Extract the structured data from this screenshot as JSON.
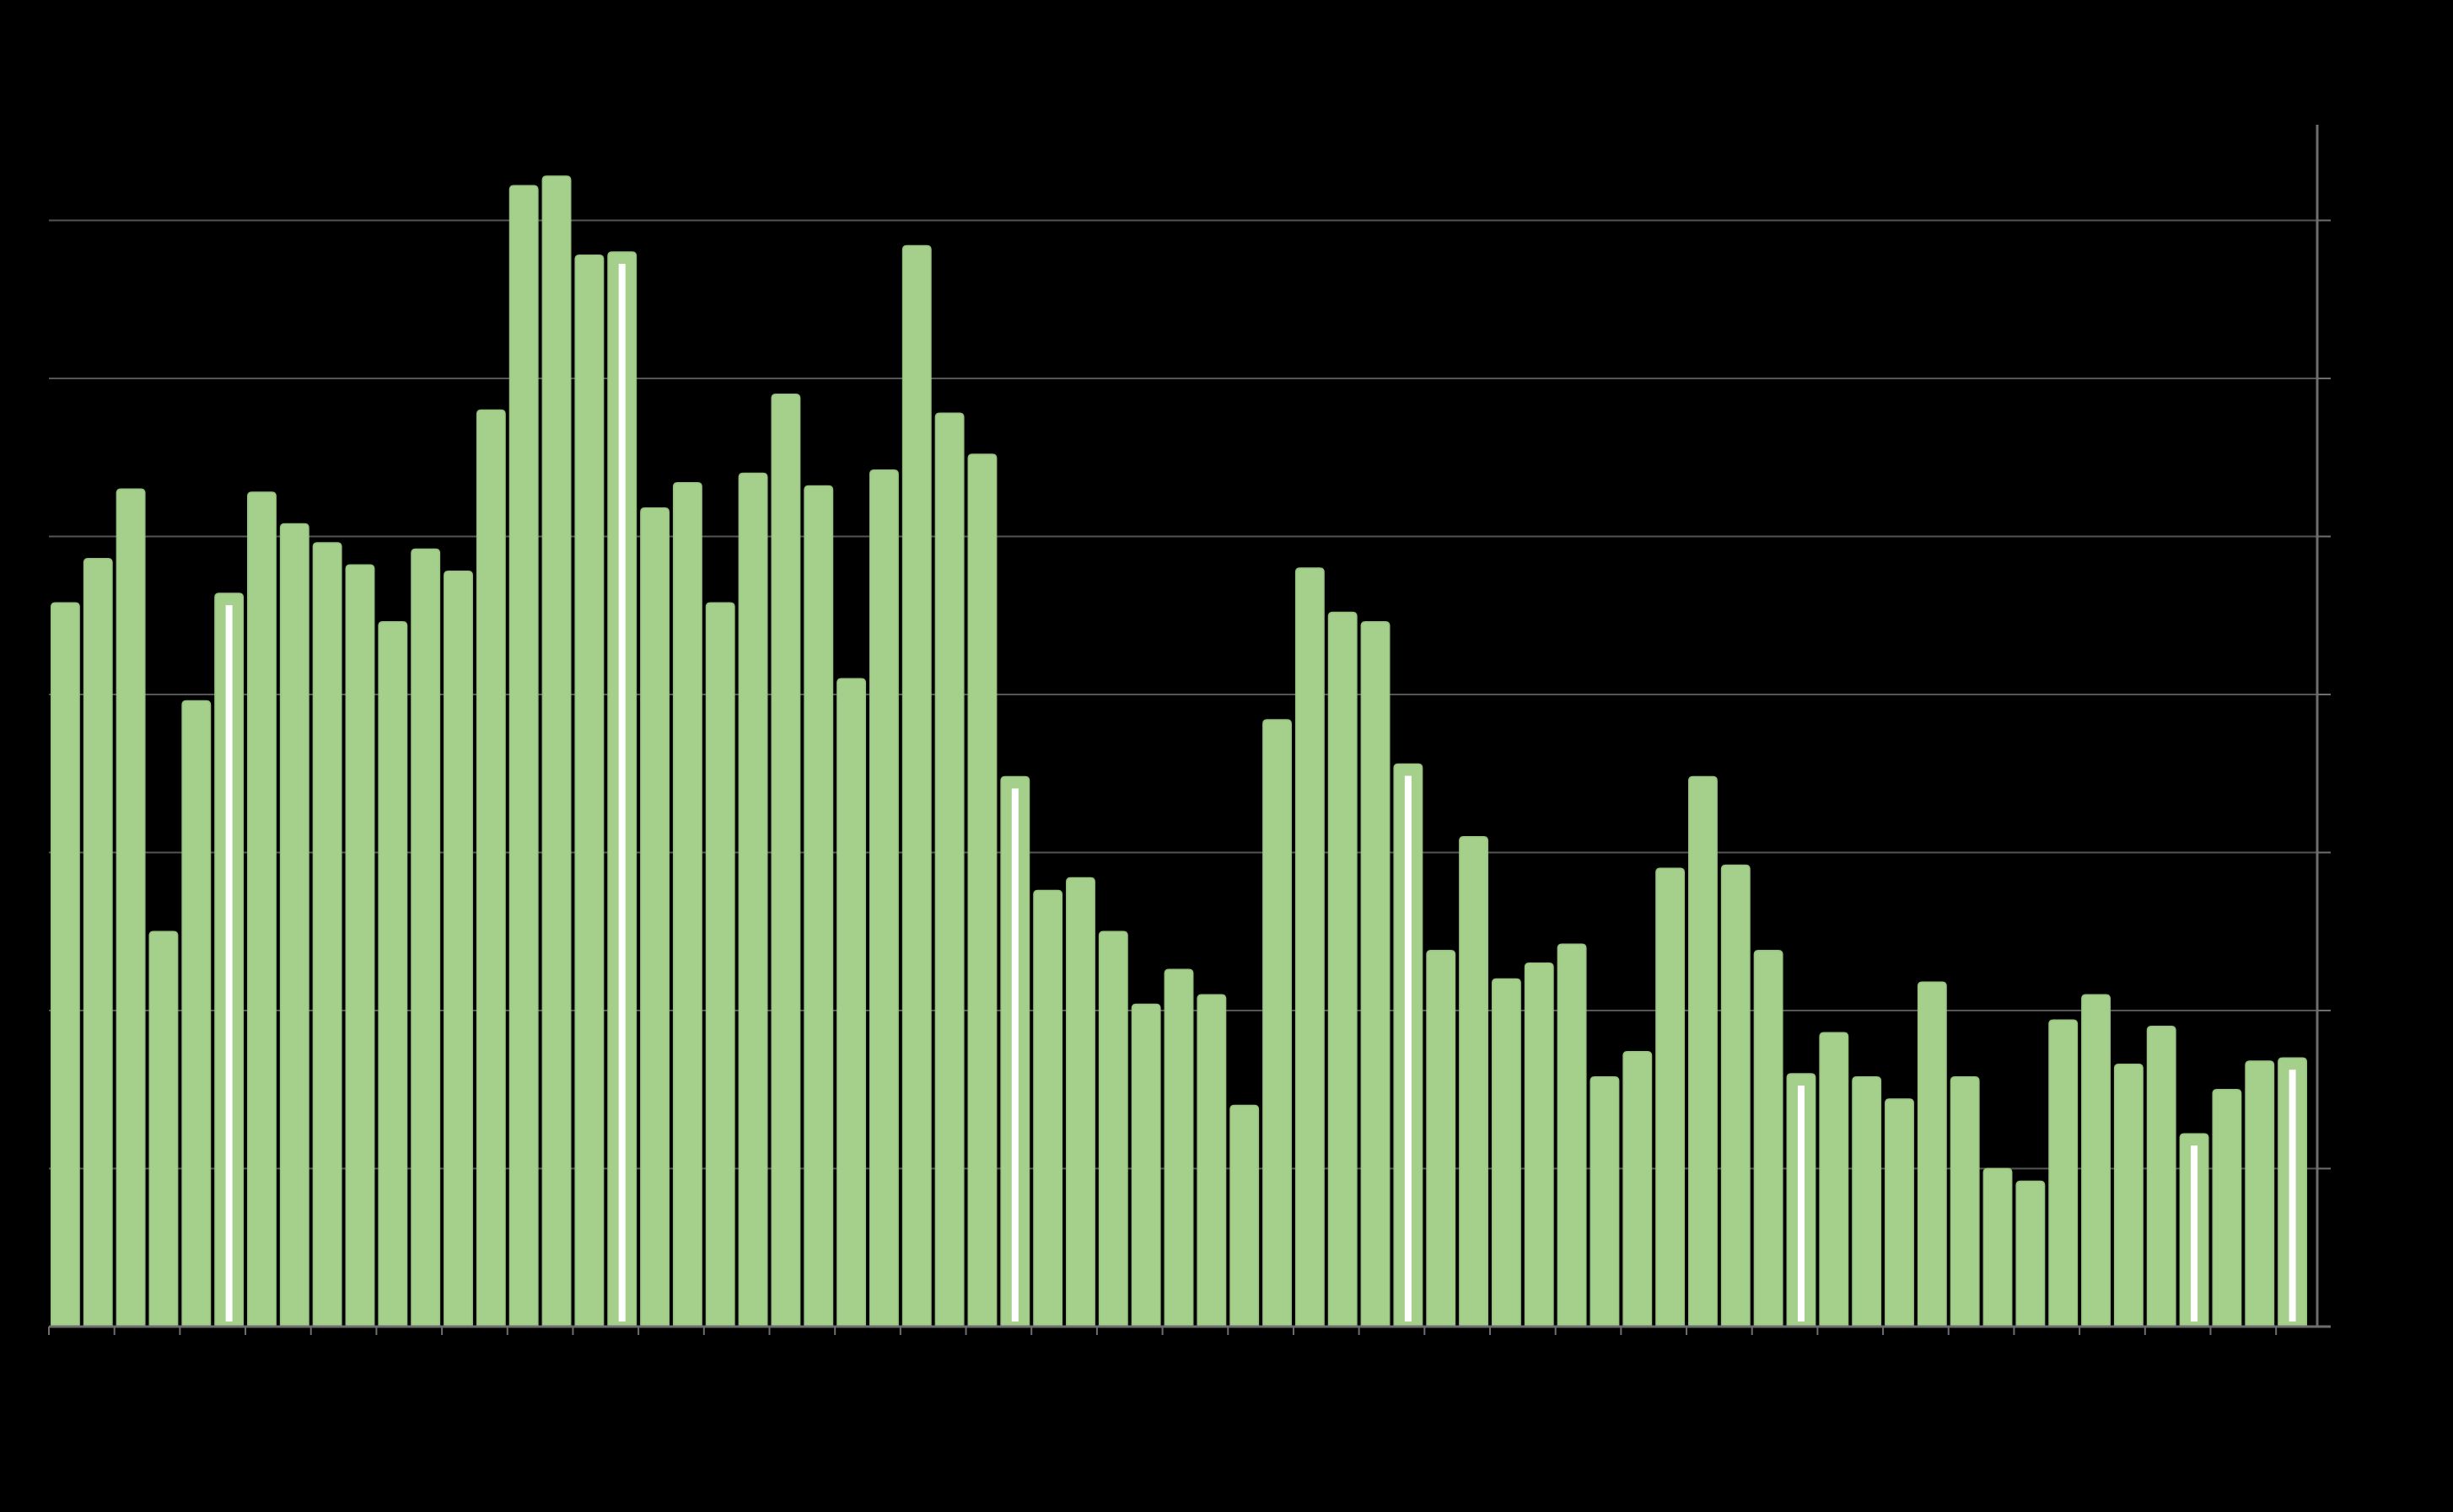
{
  "chart_data": {
    "type": "bar",
    "title": "",
    "xlabel": "",
    "ylabel": "",
    "ylim": [
      0,
      7.5
    ],
    "grid": true,
    "legend": "none",
    "y_gridlines": [
      1,
      2,
      3,
      4,
      5,
      6,
      7
    ],
    "values": [
      4.58,
      4.86,
      5.3,
      2.5,
      3.96,
      4.64,
      5.28,
      5.08,
      4.96,
      4.82,
      4.46,
      4.92,
      4.78,
      5.8,
      7.22,
      7.28,
      6.78,
      6.8,
      5.18,
      5.34,
      4.58,
      5.4,
      5.9,
      5.32,
      4.1,
      5.42,
      6.84,
      5.78,
      5.52,
      3.48,
      2.76,
      2.84,
      2.5,
      2.04,
      2.26,
      2.1,
      1.4,
      3.84,
      4.8,
      4.52,
      4.46,
      3.56,
      2.38,
      3.1,
      2.2,
      2.3,
      2.42,
      1.58,
      1.74,
      2.9,
      3.48,
      2.92,
      2.38,
      1.6,
      1.86,
      1.58,
      1.44,
      2.18,
      1.58,
      1.0,
      0.92,
      1.94,
      2.1,
      1.66,
      1.9,
      1.22,
      1.5,
      1.68,
      1.7
    ],
    "highlight_every": 12,
    "colors": {
      "background": "#000000",
      "bar": "#a5d08c",
      "bar_edge": "#98c27f",
      "gridline": "#555555",
      "axis": "#6e6e6e",
      "highlight_marker": "#ffffff"
    }
  }
}
